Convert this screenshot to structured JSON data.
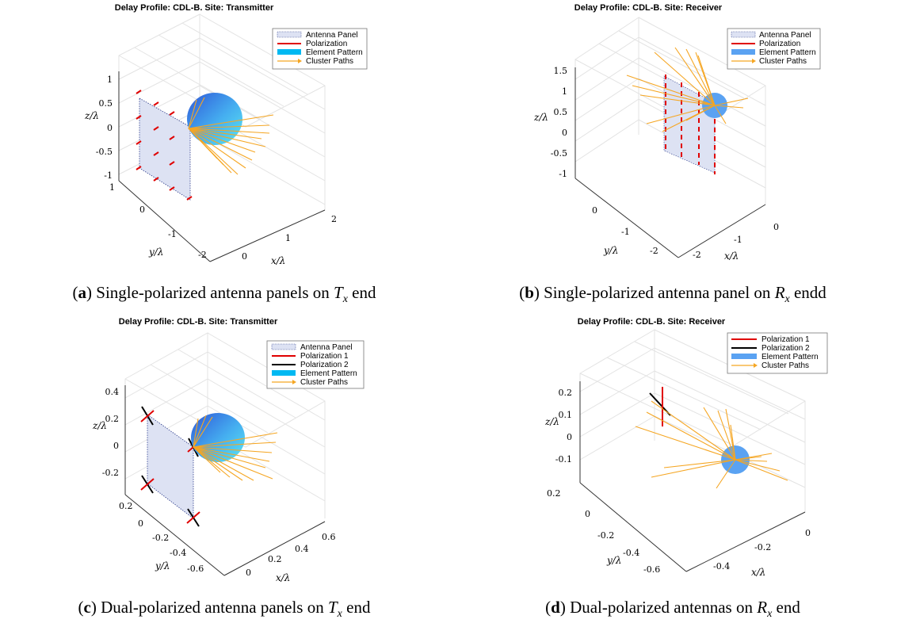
{
  "panels": [
    {
      "id": "a",
      "title": "Delay Profile: CDL-B. Site: Transmitter",
      "legend": [
        "Antenna Panel",
        "Polarization",
        "Element Pattern",
        "Cluster Paths"
      ],
      "z_ticks": [
        "1",
        "0.5",
        "0",
        "-0.5",
        "-1"
      ],
      "y_ticks": [
        "1",
        "0",
        "-1",
        "-2"
      ],
      "x_ticks": [
        "0",
        "1",
        "2"
      ],
      "xlabel": "x/λ",
      "ylabel": "y/λ",
      "zlabel": "z/λ",
      "caption": {
        "letter": "a",
        "text": "Single-polarized antenna panels on",
        "sym": "T",
        "sub": "x",
        "tail": "end"
      }
    },
    {
      "id": "b",
      "title": "Delay Profile: CDL-B. Site: Receiver",
      "legend": [
        "Antenna Panel",
        "Polarization",
        "Element Pattern",
        "Cluster Paths"
      ],
      "z_ticks": [
        "1.5",
        "1",
        "0.5",
        "0",
        "-0.5",
        "-1"
      ],
      "y_ticks": [
        "0",
        "-1",
        "-2"
      ],
      "x_ticks": [
        "-2",
        "-1",
        "0"
      ],
      "xlabel": "x/λ",
      "ylabel": "y/λ",
      "zlabel": "z/λ",
      "caption": {
        "letter": "b",
        "text": "Single-polarized antenna panel on",
        "sym": "R",
        "sub": "x",
        "tail": "endd"
      }
    },
    {
      "id": "c",
      "title": "Delay Profile: CDL-B. Site: Transmitter",
      "legend": [
        "Antenna Panel",
        "Polarization 1",
        "Polarization 2",
        "Element Pattern",
        "Cluster Paths"
      ],
      "z_ticks": [
        "0.4",
        "0.2",
        "0",
        "-0.2"
      ],
      "y_ticks": [
        "0.2",
        "0",
        "-0.2",
        "-0.4",
        "-0.6"
      ],
      "x_ticks": [
        "0",
        "0.2",
        "0.4",
        "0.6"
      ],
      "xlabel": "x/λ",
      "ylabel": "y/λ",
      "zlabel": "z/λ",
      "caption": {
        "letter": "c",
        "text": "Dual-polarized antenna panels on",
        "sym": "T",
        "sub": "x",
        "tail": "end"
      }
    },
    {
      "id": "d",
      "title": "Delay Profile: CDL-B. Site: Receiver",
      "legend": [
        "Polarization 1",
        "Polarization 2",
        "Element Pattern",
        "Cluster Paths"
      ],
      "z_ticks": [
        "0.2",
        "0.1",
        "0",
        "-0.1"
      ],
      "y_ticks": [
        "0.2",
        "0",
        "-0.2",
        "-0.4",
        "-0.6"
      ],
      "x_ticks": [
        "-0.4",
        "-0.2",
        "0"
      ],
      "xlabel": "x/λ",
      "ylabel": "y/λ",
      "zlabel": "z/λ",
      "caption": {
        "letter": "d",
        "text": "Dual-polarized antennas on",
        "sym": "R",
        "sub": "x",
        "tail": "end"
      }
    }
  ],
  "colors": {
    "panel_fill": "#dde2f3",
    "polarization_1": "#e00000",
    "polarization_2": "#000000",
    "element_pattern_tx": "#33ccee",
    "element_pattern_rx": "#5aa2f2",
    "cluster_paths": "#f5a623",
    "grid": "#e2e2e2"
  }
}
